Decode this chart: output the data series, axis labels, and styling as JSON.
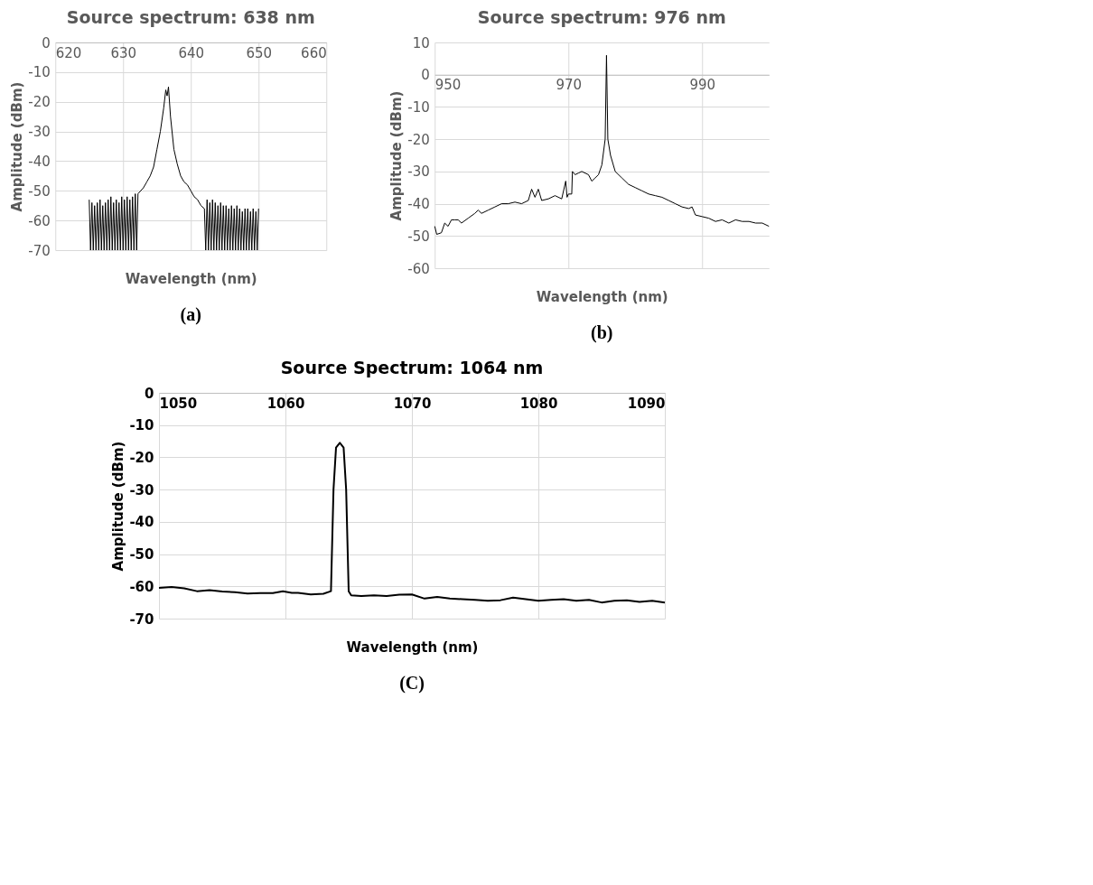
{
  "chart_data": [
    {
      "type": "line",
      "title": "Source spectrum: 638 nm",
      "xlabel": "Wavelength (nm)",
      "ylabel": "Amplitude (dBm)",
      "xlim": [
        620,
        660
      ],
      "ylim": [
        -70,
        0
      ],
      "xticks": [
        620,
        630,
        640,
        650,
        660
      ],
      "yticks": [
        -70,
        -60,
        -50,
        -40,
        -30,
        -20,
        -10,
        0
      ],
      "grid": true,
      "annotations": [
        "(a)"
      ],
      "series": [
        {
          "color": "#000000",
          "x": [
            625,
            625.2,
            625.4,
            625.6,
            625.8,
            626,
            626.2,
            626.4,
            626.6,
            626.8,
            627,
            627.2,
            627.4,
            627.6,
            627.8,
            628,
            628.2,
            628.4,
            628.6,
            628.8,
            629,
            629.2,
            629.4,
            629.6,
            629.8,
            630,
            630.2,
            630.4,
            630.6,
            630.8,
            631,
            631.2,
            631.4,
            631.6,
            631.8,
            632,
            632.2,
            633,
            633.5,
            634,
            634.5,
            635,
            635.5,
            636,
            636.3,
            636.5,
            636.7,
            637,
            637.5,
            638,
            638.5,
            639,
            639.5,
            640,
            640.5,
            641,
            641.5,
            642,
            642.2,
            642.4,
            642.6,
            642.8,
            643,
            643.2,
            643.4,
            643.6,
            643.8,
            644,
            644.2,
            644.4,
            644.6,
            644.8,
            645,
            645.2,
            645.4,
            645.6,
            645.8,
            646,
            646.2,
            646.4,
            646.6,
            646.8,
            647,
            647.2,
            647.4,
            647.6,
            647.8,
            648,
            648.2,
            648.4,
            648.6,
            648.8,
            649,
            649.2,
            649.4,
            649.6,
            649.8,
            650
          ],
          "values": [
            -53,
            -70,
            -54,
            -70,
            -55,
            -70,
            -54,
            -70,
            -53,
            -70,
            -55,
            -70,
            -54,
            -70,
            -53,
            -70,
            -52,
            -70,
            -54,
            -70,
            -53,
            -70,
            -54,
            -70,
            -52,
            -70,
            -53,
            -70,
            -52,
            -70,
            -53,
            -70,
            -52,
            -70,
            -51,
            -70,
            -51,
            -49,
            -47,
            -45,
            -42,
            -36,
            -30,
            -22,
            -16,
            -18,
            -15,
            -25,
            -36,
            -41,
            -45,
            -47,
            -48,
            -50,
            -52,
            -53,
            -55,
            -56,
            -70,
            -53,
            -70,
            -54,
            -70,
            -53,
            -70,
            -54,
            -70,
            -55,
            -70,
            -54,
            -70,
            -55,
            -70,
            -55,
            -70,
            -56,
            -70,
            -55,
            -70,
            -56,
            -70,
            -55,
            -70,
            -56,
            -70,
            -57,
            -70,
            -56,
            -70,
            -56,
            -70,
            -57,
            -70,
            -56,
            -70,
            -57,
            -70,
            -56
          ]
        }
      ]
    },
    {
      "type": "line",
      "title": "Source spectrum: 976 nm",
      "xlabel": "Wavelength (nm)",
      "ylabel": "Amplitude (dBm)",
      "xlim": [
        950,
        1000
      ],
      "ylim": [
        -60,
        10
      ],
      "xticks": [
        950,
        970,
        990
      ],
      "yticks": [
        -60,
        -50,
        -40,
        -30,
        -20,
        -10,
        0,
        10
      ],
      "grid": true,
      "annotations": [
        "(b)"
      ],
      "series": [
        {
          "color": "#000000",
          "x": [
            950,
            950.3,
            951,
            951.5,
            952,
            952.5,
            953,
            953.5,
            954,
            955,
            956,
            956.5,
            957,
            958,
            959,
            960,
            961,
            962,
            963,
            964,
            964.5,
            965,
            965.5,
            966,
            967,
            968,
            969,
            969.6,
            969.8,
            970,
            970.5,
            970.6,
            971,
            971.5,
            972,
            973,
            973.5,
            974,
            974.5,
            975,
            975.5,
            975.7,
            975.9,
            976.3,
            977,
            978,
            979,
            980,
            981,
            982,
            983,
            984,
            985,
            986,
            987,
            988,
            988.5,
            989,
            990,
            991,
            992,
            993,
            994,
            995,
            996,
            997,
            998,
            999,
            1000
          ],
          "values": [
            -47,
            -49.5,
            -49,
            -46,
            -47,
            -45,
            -45,
            -45,
            -46,
            -44.5,
            -43,
            -42,
            -43,
            -42,
            -41,
            -40,
            -40,
            -39.5,
            -40,
            -39,
            -35.5,
            -38,
            -35.5,
            -39,
            -38.5,
            -37.5,
            -38.5,
            -33,
            -38,
            -37,
            -37,
            -30,
            -31,
            -30.5,
            -30,
            -31,
            -33,
            -32,
            -31,
            -28,
            -20,
            6,
            -20,
            -25,
            -30,
            -32,
            -34,
            -35,
            -36,
            -37,
            -37.5,
            -38,
            -39,
            -40,
            -41,
            -41.5,
            -41,
            -43.5,
            -44,
            -44.5,
            -45.5,
            -45,
            -46,
            -45,
            -45.5,
            -45.5,
            -46,
            -46,
            -47
          ]
        }
      ]
    },
    {
      "type": "line",
      "title": "Source Spectrum: 1064 nm",
      "xlabel": "Wavelength (nm)",
      "ylabel": "Amplitude (dBm)",
      "xlim": [
        1050,
        1090
      ],
      "ylim": [
        -70,
        0
      ],
      "xticks": [
        1050,
        1060,
        1070,
        1080,
        1090
      ],
      "yticks": [
        -70,
        -60,
        -50,
        -40,
        -30,
        -20,
        -10,
        0
      ],
      "grid": true,
      "annotations": [
        "(C)"
      ],
      "series": [
        {
          "color": "#000000",
          "x": [
            1050,
            1051,
            1052,
            1053,
            1054,
            1055,
            1056,
            1057,
            1058,
            1059,
            1059.8,
            1060.5,
            1061,
            1062,
            1063,
            1063.6,
            1063.8,
            1064,
            1064.3,
            1064.6,
            1064.8,
            1065,
            1065.2,
            1066,
            1067,
            1068,
            1069,
            1070,
            1071,
            1072,
            1073,
            1074,
            1075,
            1076,
            1077,
            1078,
            1079,
            1080,
            1081,
            1082,
            1083,
            1084,
            1085,
            1086,
            1087,
            1088,
            1089,
            1090
          ],
          "values": [
            -60.5,
            -60.2,
            -60.6,
            -61.5,
            -61.2,
            -61.6,
            -61.8,
            -62.2,
            -62.1,
            -62.1,
            -61.5,
            -62,
            -62,
            -62.5,
            -62.3,
            -61.5,
            -30,
            -17,
            -15.5,
            -17,
            -30,
            -61.5,
            -62.8,
            -63,
            -62.8,
            -63,
            -62.6,
            -62.5,
            -63.8,
            -63.3,
            -63.8,
            -64,
            -64.2,
            -64.5,
            -64.3,
            -63.5,
            -64,
            -64.5,
            -64.2,
            -64,
            -64.5,
            -64.2,
            -65,
            -64.5,
            -64.3,
            -64.8,
            -64.5,
            -65
          ]
        }
      ]
    }
  ]
}
